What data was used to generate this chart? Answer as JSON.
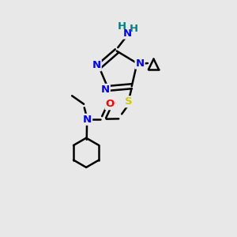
{
  "bg_color": "#e8e8e8",
  "atom_colors": {
    "N": "#0000ff",
    "S": "#cccc00",
    "O": "#ff0000",
    "C": "#000000",
    "H": "#008080"
  },
  "bond_color": "#000000",
  "bond_width": 1.8,
  "font_size": 9.5,
  "figsize": [
    3.0,
    3.0
  ],
  "dpi": 100
}
